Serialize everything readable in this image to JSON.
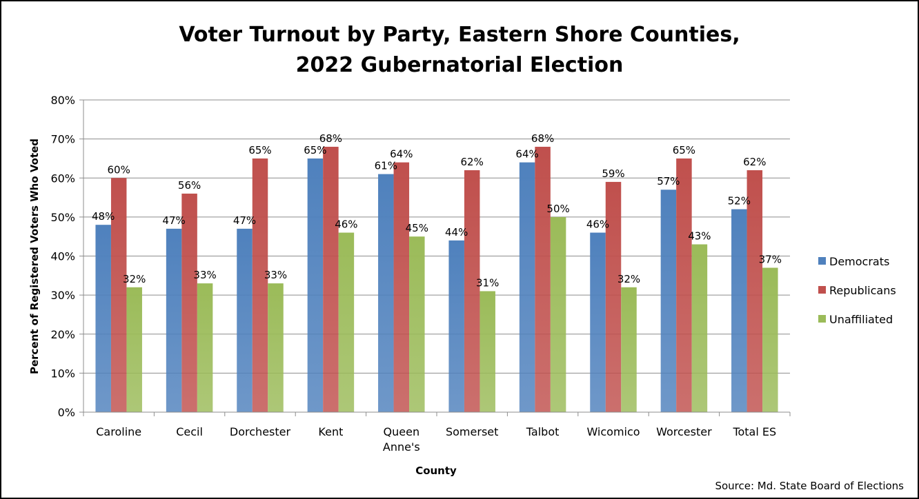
{
  "chart_data": {
    "type": "bar",
    "title_lines": [
      "Voter Turnout by Party, Eastern Shore Counties,",
      "2022 Gubernatorial Election"
    ],
    "xlabel": "County",
    "ylabel": "Percent of Registered Voters Who Voted",
    "ylim": [
      0,
      80
    ],
    "y_ticks": [
      "0%",
      "10%",
      "20%",
      "30%",
      "40%",
      "50%",
      "60%",
      "70%",
      "80%"
    ],
    "categories": [
      [
        "Caroline"
      ],
      [
        "Cecil"
      ],
      [
        "Dorchester"
      ],
      [
        "Kent"
      ],
      [
        "Queen",
        "Anne's"
      ],
      [
        "Somerset"
      ],
      [
        "Talbot"
      ],
      [
        "Wicomico"
      ],
      [
        "Worcester"
      ],
      [
        "Total ES"
      ]
    ],
    "series": [
      {
        "name": "Democrats",
        "color": "#4f81bd",
        "values": [
          48,
          47,
          47,
          65,
          61,
          44,
          64,
          46,
          57,
          52
        ],
        "labels": [
          "48%",
          "47%",
          "47%",
          "65%",
          "61%",
          "44%",
          "64%",
          "46%",
          "57%",
          "52%"
        ]
      },
      {
        "name": "Republicans",
        "color": "#c0504d",
        "values": [
          60,
          56,
          65,
          68,
          64,
          62,
          68,
          59,
          65,
          62
        ],
        "labels": [
          "60%",
          "56%",
          "65%",
          "68%",
          "64%",
          "62%",
          "68%",
          "59%",
          "65%",
          "62%"
        ]
      },
      {
        "name": "Unaffiliated",
        "color": "#9bbb59",
        "values": [
          32,
          33,
          33,
          46,
          45,
          31,
          50,
          32,
          43,
          37
        ],
        "labels": [
          "32%",
          "33%",
          "33%",
          "46%",
          "45%",
          "31%",
          "50%",
          "32%",
          "43%",
          "37%"
        ]
      }
    ],
    "legend_position": "right",
    "grid": true,
    "source": "Source:  Md. State Board of Elections"
  }
}
